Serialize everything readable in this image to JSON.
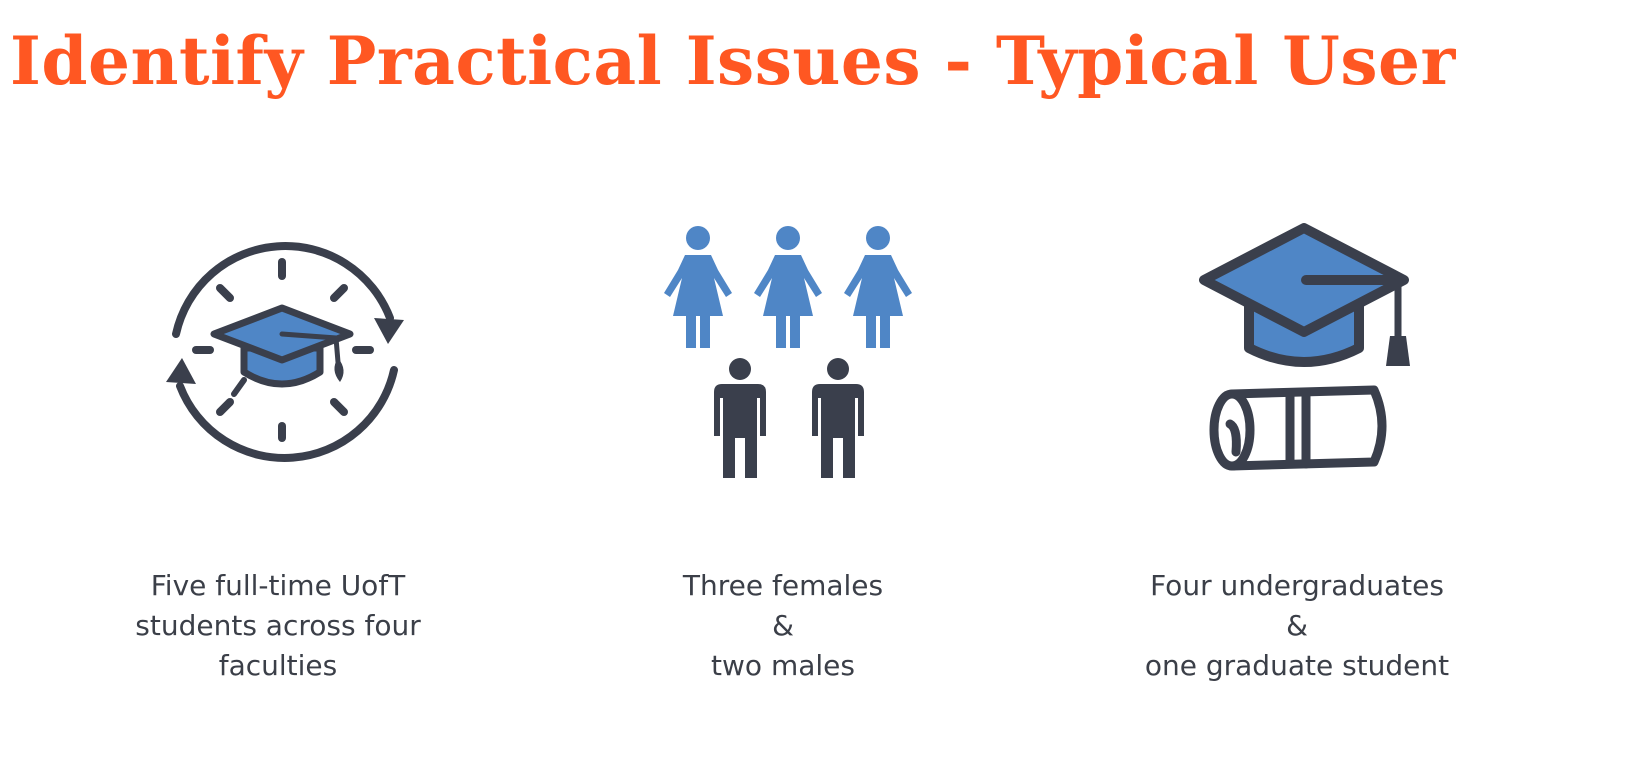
{
  "title": "Identify Practical Issues - Typical User",
  "colors": {
    "title": "#ff5722",
    "accent_blue": "#4f86c6",
    "dark": "#3a3f4c",
    "text": "#3b3f48"
  },
  "columns": [
    {
      "icon": "graduation-cap-cycle-icon",
      "lines": [
        "Five full-time UofT",
        "students across four",
        "faculties"
      ]
    },
    {
      "icon": "people-group-icon",
      "lines": [
        "Three females",
        "&",
        "two males"
      ]
    },
    {
      "icon": "graduation-cap-diploma-icon",
      "lines": [
        "Four undergraduates",
        "&",
        "one graduate student"
      ]
    }
  ]
}
